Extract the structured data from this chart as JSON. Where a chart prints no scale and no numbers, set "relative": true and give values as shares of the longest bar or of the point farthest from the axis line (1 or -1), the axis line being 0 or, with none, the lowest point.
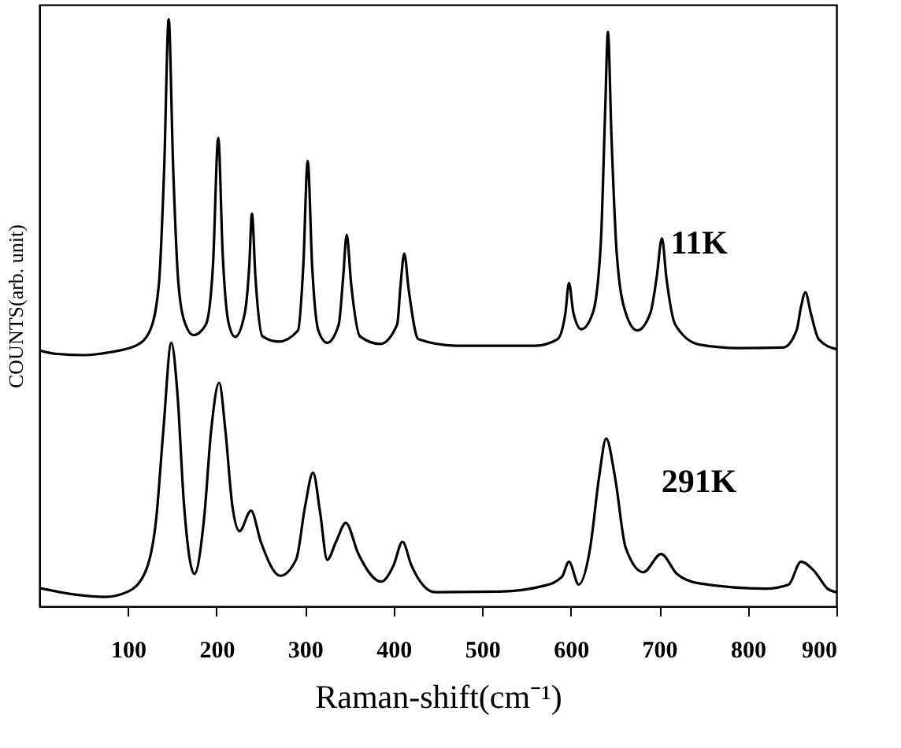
{
  "chart_data": {
    "type": "line",
    "relative": true,
    "xlabel": "Raman-shift(cm⁻¹)",
    "ylabel": "COUNTS(arb. unit)",
    "xlim": [
      0,
      900
    ],
    "xticks": [
      100,
      200,
      300,
      400,
      500,
      600,
      700,
      800,
      900
    ],
    "series": [
      {
        "name": "11K",
        "color": "#000000",
        "x": [
          0,
          20,
          50,
          80,
          110,
          125,
          135,
          141,
          146,
          151,
          157,
          165,
          174,
          188,
          196,
          202,
          207,
          214,
          221,
          232,
          237,
          240,
          244,
          252,
          270,
          292,
          298,
          303,
          308,
          315,
          325,
          338,
          343,
          347,
          352,
          362,
          385,
          404,
          408,
          412,
          417,
          428,
          470,
          560,
          585,
          594,
          598,
          603,
          612,
          625,
          634,
          639,
          642,
          646,
          652,
          662,
          675,
          690,
          697,
          703,
          708,
          718,
          745,
          790,
          840,
          855,
          860,
          865,
          871,
          880,
          900
        ],
        "values": [
          0.436,
          0.43,
          0.428,
          0.433,
          0.445,
          0.47,
          0.55,
          0.75,
          1.0,
          0.75,
          0.55,
          0.48,
          0.462,
          0.48,
          0.58,
          0.798,
          0.6,
          0.48,
          0.459,
          0.5,
          0.58,
          0.669,
          0.56,
          0.46,
          0.451,
          0.47,
          0.58,
          0.759,
          0.58,
          0.47,
          0.449,
          0.48,
          0.56,
          0.633,
          0.55,
          0.46,
          0.447,
          0.48,
          0.55,
          0.601,
          0.54,
          0.455,
          0.444,
          0.444,
          0.455,
          0.5,
          0.551,
          0.5,
          0.472,
          0.5,
          0.62,
          0.85,
          0.979,
          0.8,
          0.6,
          0.5,
          0.47,
          0.5,
          0.56,
          0.627,
          0.56,
          0.48,
          0.446,
          0.44,
          0.441,
          0.47,
          0.51,
          0.535,
          0.5,
          0.455,
          0.438
        ]
      },
      {
        "name": "291K",
        "color": "#000000",
        "x": [
          0,
          40,
          74,
          100,
          120,
          132,
          140,
          149,
          156,
          163,
          175,
          186,
          194,
          203,
          210,
          218,
          226,
          239,
          250,
          272,
          290,
          300,
          309,
          317,
          325,
          335,
          346,
          360,
          386,
          400,
          410,
          420,
          447,
          520,
          570,
          590,
          598,
          609,
          622,
          632,
          640,
          650,
          662,
          682,
          702,
          720,
          745,
          820,
          846,
          860,
          875,
          890,
          900
        ],
        "values": [
          0.031,
          0.02,
          0.016,
          0.025,
          0.06,
          0.15,
          0.3,
          0.449,
          0.36,
          0.18,
          0.055,
          0.15,
          0.3,
          0.381,
          0.3,
          0.17,
          0.128,
          0.163,
          0.11,
          0.052,
          0.08,
          0.17,
          0.228,
          0.16,
          0.079,
          0.11,
          0.142,
          0.09,
          0.042,
          0.07,
          0.11,
          0.07,
          0.024,
          0.025,
          0.035,
          0.05,
          0.076,
          0.037,
          0.1,
          0.22,
          0.286,
          0.22,
          0.1,
          0.058,
          0.089,
          0.055,
          0.039,
          0.03,
          0.037,
          0.076,
          0.06,
          0.03,
          0.024
        ]
      }
    ]
  }
}
